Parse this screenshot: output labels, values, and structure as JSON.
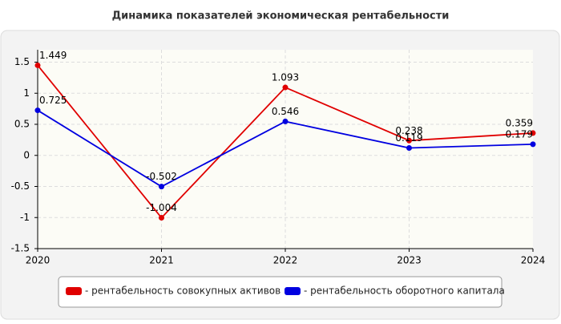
{
  "chart_data": {
    "type": "line",
    "title": "Динамика показателей экономическая рентабельности",
    "categories": [
      "2020",
      "2021",
      "2022",
      "2023",
      "2024"
    ],
    "series": [
      {
        "name": "- рентабельность совокупных активов",
        "color": "#e00000",
        "values": [
          1.449,
          -1.004,
          1.093,
          0.238,
          0.359
        ]
      },
      {
        "name": "- рентабельность оборотного капитала",
        "color": "#0000e0",
        "values": [
          0.725,
          -0.502,
          0.546,
          0.119,
          0.179
        ]
      }
    ],
    "ylim": [
      -1.5,
      1.7
    ],
    "yticks": [
      -1.5,
      -1,
      -0.5,
      0,
      0.5,
      1,
      1.5
    ],
    "grid": true
  }
}
